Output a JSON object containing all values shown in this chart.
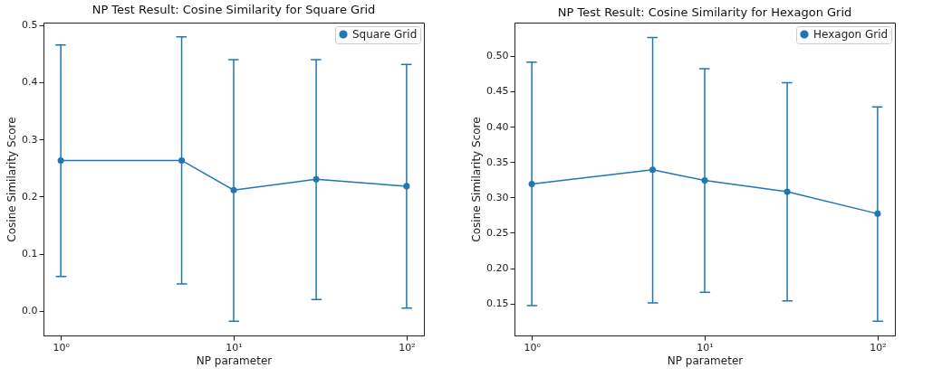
{
  "chart_data": [
    {
      "type": "line",
      "title": "NP Test Result: Cosine Similarity for Square Grid",
      "xlabel": "NP parameter",
      "ylabel": "Cosine Similarity Score",
      "x": [
        1,
        5,
        10,
        30,
        100
      ],
      "series": [
        {
          "name": "Square Grid",
          "color": "#1f77b4",
          "values": [
            0.263,
            0.263,
            0.211,
            0.23,
            0.218
          ],
          "errors": [
            [
              0.06,
              0.465
            ],
            [
              0.047,
              0.479
            ],
            [
              -0.018,
              0.439
            ],
            [
              0.02,
              0.439
            ],
            [
              0.005,
              0.431
            ]
          ]
        }
      ],
      "log": "x",
      "xlim": [
        0.794,
        125.9
      ],
      "ylim": [
        -0.043,
        0.504
      ],
      "xticks": [
        {
          "value": 1,
          "label": "10⁰"
        },
        {
          "value": 10,
          "label": "10¹"
        },
        {
          "value": 100,
          "label": "10²"
        }
      ],
      "yticks": [
        {
          "value": 0,
          "label": "0.0"
        },
        0.1,
        0.2,
        0.3,
        0.4,
        0.5
      ],
      "legend": "top right",
      "marker": "circle",
      "grid": false
    },
    {
      "type": "line",
      "title": "NP Test Result: Cosine Similarity for Hexagon Grid",
      "xlabel": "NP parameter",
      "ylabel": "Cosine Similarity Score",
      "x": [
        1,
        5,
        10,
        30,
        100
      ],
      "series": [
        {
          "name": "Hexagon Grid",
          "color": "#1f77b4",
          "values": [
            0.319,
            0.339,
            0.324,
            0.308,
            0.277
          ],
          "errors": [
            [
              0.147,
              0.491
            ],
            [
              0.151,
              0.526
            ],
            [
              0.166,
              0.482
            ],
            [
              0.154,
              0.462
            ],
            [
              0.125,
              0.428
            ]
          ]
        }
      ],
      "log": "x",
      "xlim": [
        0.794,
        125.9
      ],
      "ylim": [
        0.105,
        0.547
      ],
      "xticks": [
        {
          "value": 1,
          "label": "10⁰"
        },
        {
          "value": 10,
          "label": "10¹"
        },
        {
          "value": 100,
          "label": "10²"
        }
      ],
      "yticks": [
        0.15,
        {
          "value": 0.2,
          "label": "0.20"
        },
        0.25,
        {
          "value": 0.3,
          "label": "0.30"
        },
        0.35,
        {
          "value": 0.4,
          "label": "0.40"
        },
        0.45,
        {
          "value": 0.5,
          "label": "0.50"
        }
      ],
      "legend": "top right",
      "marker": "circle",
      "grid": false
    }
  ]
}
